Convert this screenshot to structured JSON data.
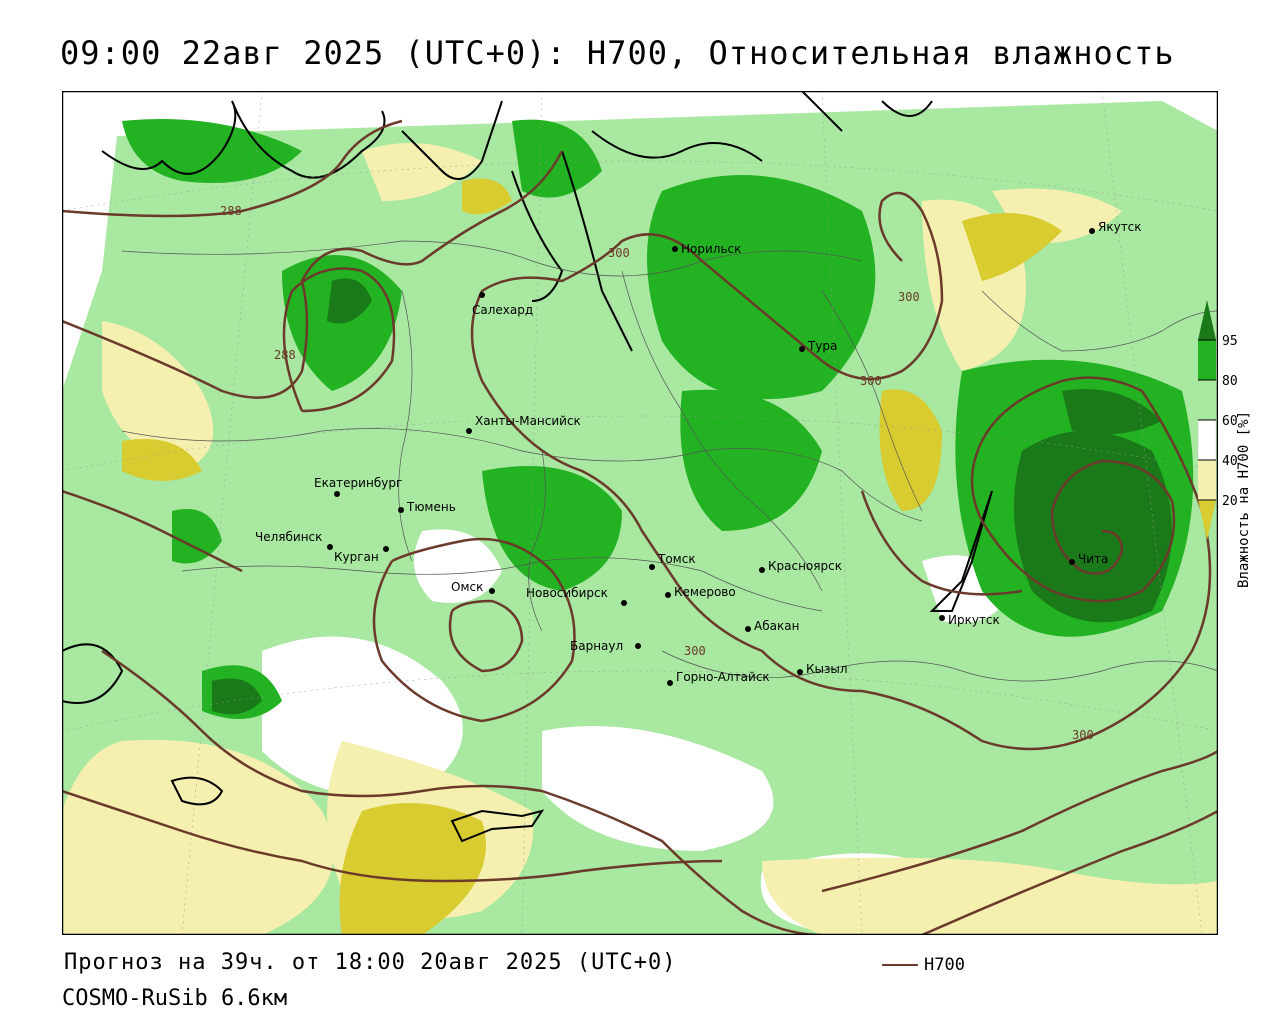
{
  "title": "09:00 22авг 2025 (UTC+0): H700, Относительная влажность",
  "forecast_line": "Прогноз на 39ч. от 18:00 20авг 2025 (UTC+0)",
  "model_line": "COSMO-RuSib 6.6км",
  "legend": {
    "line_label": "H700",
    "line_color": "#6b3a2a"
  },
  "colorbar": {
    "title": "Влажность на H700 [%]",
    "ticks": [
      "95",
      "80",
      "60",
      "40",
      "20"
    ],
    "colors": {
      "c95": "#1a7a1a",
      "c80": "#22b222",
      "c60": "#a8e8a0",
      "c40": "#ffffff",
      "c20": "#f5f0b0",
      "c0": "#d8cc30"
    }
  },
  "contour_labels": [
    "288",
    "288",
    "300",
    "300",
    "300",
    "300",
    "300"
  ],
  "cities": [
    {
      "name": "Норильск"
    },
    {
      "name": "Якутск"
    },
    {
      "name": "Салехард"
    },
    {
      "name": "Тура"
    },
    {
      "name": "Ханты-Мансийск"
    },
    {
      "name": "Екатеринбург"
    },
    {
      "name": "Тюмень"
    },
    {
      "name": "Челябинск"
    },
    {
      "name": "Курган"
    },
    {
      "name": "Омск"
    },
    {
      "name": "Новосибирск"
    },
    {
      "name": "Томск"
    },
    {
      "name": "Кемерово"
    },
    {
      "name": "Красноярск"
    },
    {
      "name": "Барнаул"
    },
    {
      "name": "Абакан"
    },
    {
      "name": "Горно-Алтайск"
    },
    {
      "name": "Кызыл"
    },
    {
      "name": "Иркутск"
    },
    {
      "name": "Чита"
    }
  ]
}
